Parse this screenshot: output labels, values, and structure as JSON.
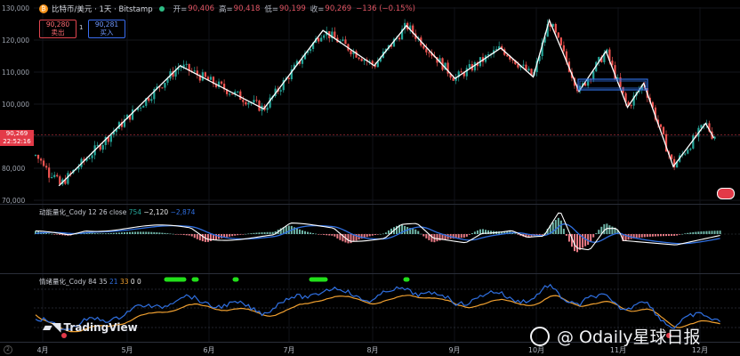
{
  "header": {
    "symbol_icon": "bitcoin-coin-icon",
    "title": "比特币/美元 · 1天 · Bitstamp",
    "open_label": "开=",
    "open": "90,406",
    "high_label": "高=",
    "high": "90,418",
    "low_label": "低=",
    "low": "90,199",
    "close_label": "收=",
    "close": "90,269",
    "change": "−136 (−0.15%)"
  },
  "trade": {
    "sell_price": "90,280",
    "sell_label": "卖出",
    "quantity": "1",
    "buy_price": "90,281",
    "buy_label": "买入"
  },
  "last_price": {
    "value": "90,269",
    "countdown": "22:52:16"
  },
  "price_axis": [
    "130,000",
    "120,000",
    "110,000",
    "100,000",
    "90,000",
    "80,000",
    "70,000"
  ],
  "time_axis": [
    "4月",
    "5月",
    "6月",
    "7月",
    "8月",
    "9月",
    "10月",
    "11月",
    "12月"
  ],
  "macd_panel": {
    "title": "动能量化_Cody 12 26 close",
    "values": [
      "754",
      "−2,120",
      "−2,874"
    ],
    "value_colors": [
      "#26a69a",
      "#e8e8e8",
      "#2f6fe0"
    ]
  },
  "sentiment_panel": {
    "title": "情绪量化_Cody 84 35",
    "values": [
      "21",
      "33",
      "0",
      "0"
    ],
    "value_colors": [
      "#2f6fe0",
      "#f0a030",
      "#e8e8e8",
      "#e8e8e8"
    ]
  },
  "watermark": {
    "logo": "tradingview-logo-icon",
    "text": "TradingView"
  },
  "brand": {
    "icon": "odaily-logo-icon",
    "text": "@ Odaily星球日报"
  },
  "colors": {
    "up": "#26a69a",
    "down": "#ef5350",
    "zigzag": "#ffffff",
    "box": "#2f6fe0",
    "macd_line": "#ffffff",
    "signal_line": "#2f6fe0",
    "sentiment_fast": "#2f6fe0",
    "sentiment_slow": "#f0a030",
    "signal_dots": "#22e01a"
  },
  "chart_data": {
    "type": "candlestick",
    "x": [
      "4月",
      "5月",
      "6月",
      "7月",
      "8月",
      "9月",
      "10月",
      "11月",
      "12月"
    ],
    "ylim": [
      70000,
      130000
    ],
    "zigzag": [
      {
        "date": "2025-04-07",
        "price": 74500
      },
      {
        "date": "2025-05-22",
        "price": 112000
      },
      {
        "date": "2025-06-22",
        "price": 98500
      },
      {
        "date": "2025-07-14",
        "price": 123000
      },
      {
        "date": "2025-08-02",
        "price": 112000
      },
      {
        "date": "2025-08-14",
        "price": 124500
      },
      {
        "date": "2025-09-01",
        "price": 108000
      },
      {
        "date": "2025-09-18",
        "price": 117500
      },
      {
        "date": "2025-09-30",
        "price": 108500
      },
      {
        "date": "2025-10-06",
        "price": 126200
      },
      {
        "date": "2025-10-17",
        "price": 104000
      },
      {
        "date": "2025-10-27",
        "price": 116500
      },
      {
        "date": "2025-11-04",
        "price": 99000
      },
      {
        "date": "2025-11-10",
        "price": 106500
      },
      {
        "date": "2025-11-21",
        "price": 80500
      },
      {
        "date": "2025-12-03",
        "price": 94000
      },
      {
        "date": "2025-12-06",
        "price": 89500
      }
    ]
  }
}
